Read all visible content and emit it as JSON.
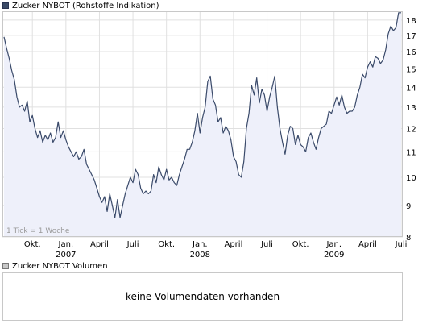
{
  "legend_price": "Zucker NYBOT (Rohstoffe Indikation)",
  "legend_volume": "Zucker NYBOT Volumen",
  "tick_note": "1 Tick = 1 Woche",
  "no_volume_text": "keine Volumendaten vorhanden",
  "colors": {
    "line": "#3a4a6a",
    "fill": "#eef0fa",
    "grid": "#e0e0e0",
    "frame": "#c8c8c8"
  },
  "chart_data": {
    "type": "area",
    "title": "Zucker NYBOT (Rohstoffe Indikation)",
    "y_axis": {
      "scale": "log",
      "range": [
        8,
        18.6
      ],
      "ticks": [
        8,
        9,
        10,
        11,
        12,
        13,
        14,
        15,
        16,
        17,
        18
      ],
      "position": "right"
    },
    "x_axis": {
      "ticks": [
        {
          "label": "Okt.",
          "year": "",
          "i": 11
        },
        {
          "label": "Jan.",
          "year": "2007",
          "i": 24
        },
        {
          "label": "April",
          "year": "",
          "i": 37
        },
        {
          "label": "Juli",
          "year": "",
          "i": 50
        },
        {
          "label": "Okt.",
          "year": "",
          "i": 63
        },
        {
          "label": "Jan.",
          "year": "2008",
          "i": 76
        },
        {
          "label": "April",
          "year": "",
          "i": 89
        },
        {
          "label": "Juli",
          "year": "",
          "i": 102
        },
        {
          "label": "Okt.",
          "year": "",
          "i": 115
        },
        {
          "label": "Jan.",
          "year": "2009",
          "i": 128
        },
        {
          "label": "April",
          "year": "",
          "i": 141
        },
        {
          "label": "Juli",
          "year": "",
          "i": 154
        }
      ]
    },
    "grid": true,
    "series": [
      {
        "values": [
          16.9,
          16.2,
          15.6,
          14.9,
          14.4,
          13.5,
          13.0,
          13.1,
          12.8,
          13.3,
          12.3,
          12.6,
          12.0,
          11.6,
          11.9,
          11.4,
          11.7,
          11.5,
          11.8,
          11.4,
          11.6,
          12.3,
          11.6,
          11.9,
          11.5,
          11.2,
          11.0,
          10.8,
          11.0,
          10.7,
          10.8,
          11.1,
          10.5,
          10.3,
          10.1,
          9.9,
          9.6,
          9.3,
          9.1,
          9.3,
          8.8,
          9.4,
          9.0,
          8.6,
          9.2,
          8.6,
          9.0,
          9.4,
          9.7,
          10.0,
          9.8,
          10.3,
          10.1,
          9.6,
          9.4,
          9.5,
          9.4,
          9.5,
          10.1,
          9.8,
          10.4,
          10.1,
          9.9,
          10.3,
          9.9,
          10.0,
          9.8,
          9.7,
          10.1,
          10.4,
          10.7,
          11.1,
          11.1,
          11.4,
          11.9,
          12.7,
          11.8,
          12.5,
          13.0,
          14.3,
          14.6,
          13.4,
          13.1,
          12.3,
          12.5,
          11.8,
          12.1,
          11.9,
          11.5,
          10.8,
          10.6,
          10.1,
          10.0,
          10.6,
          12.0,
          12.7,
          14.1,
          13.6,
          14.5,
          13.2,
          13.9,
          13.6,
          12.8,
          13.5,
          14.0,
          14.6,
          13.0,
          12.0,
          11.4,
          10.9,
          11.7,
          12.1,
          12.0,
          11.3,
          11.7,
          11.3,
          11.2,
          11.0,
          11.6,
          11.8,
          11.4,
          11.1,
          11.6,
          12.0,
          12.1,
          12.2,
          12.8,
          12.7,
          13.1,
          13.5,
          13.1,
          13.6,
          13.0,
          12.7,
          12.8,
          12.8,
          13.0,
          13.6,
          14.0,
          14.7,
          14.5,
          15.1,
          15.4,
          15.1,
          15.7,
          15.6,
          15.3,
          15.5,
          16.1,
          17.1,
          17.6,
          17.3,
          17.5,
          18.5,
          18.5
        ]
      }
    ]
  }
}
